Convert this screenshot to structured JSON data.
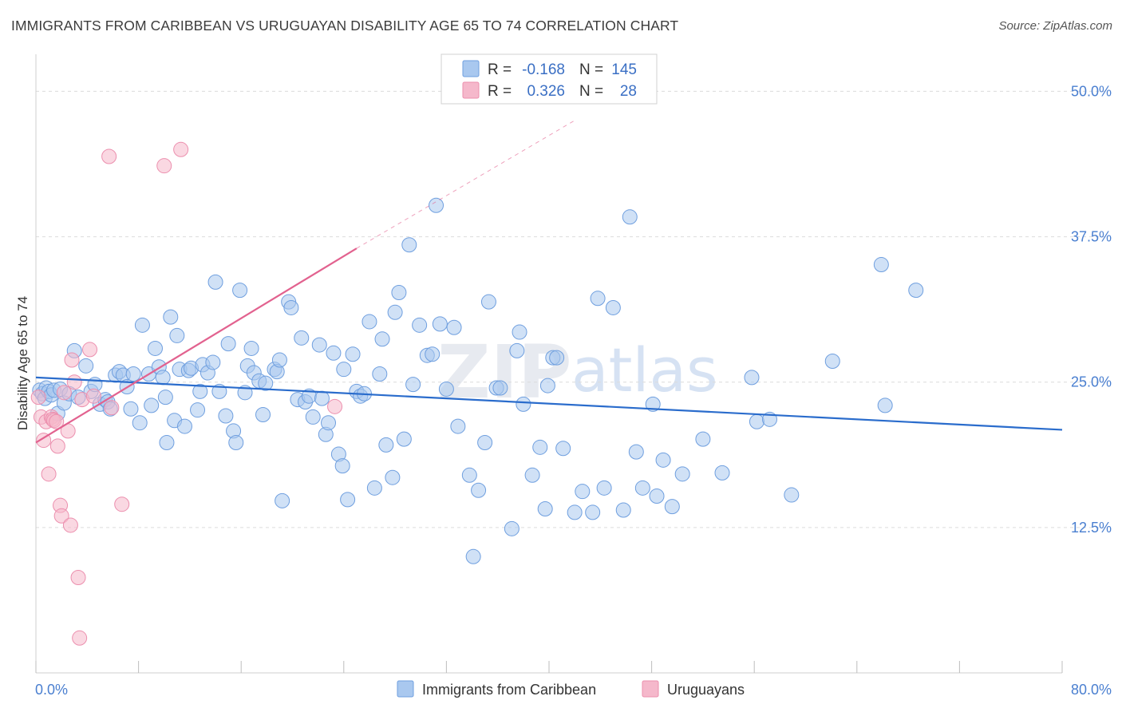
{
  "header": {
    "title": "IMMIGRANTS FROM CARIBBEAN VS URUGUAYAN DISABILITY AGE 65 TO 74 CORRELATION CHART",
    "source": "Source: ZipAtlas.com"
  },
  "legend": {
    "r_label": "R =",
    "n_label": "N =",
    "rows": [
      {
        "r": "-0.168",
        "n": "145"
      },
      {
        "r": "0.326",
        "n": "28"
      }
    ]
  },
  "watermark": {
    "zip": "ZIP",
    "atlas": "atlas"
  },
  "colors": {
    "blue_fill": "#a9c8ef",
    "blue_stroke": "#6f9fdf",
    "blue_line": "#2a6ccc",
    "pink_fill": "#f5b8cb",
    "pink_stroke": "#ec8fae",
    "pink_line": "#e2628f",
    "grid": "#dcdcdc",
    "tick_label": "#4a7fd0"
  },
  "chart_data": {
    "type": "scatter",
    "title": "IMMIGRANTS FROM CARIBBEAN VS URUGUAYAN DISABILITY AGE 65 TO 74 CORRELATION CHART",
    "xlabel": "",
    "ylabel": "Disability Age 65 to 74",
    "xlim": [
      0,
      80
    ],
    "ylim": [
      0,
      52.5
    ],
    "x_tick_labels": [
      "0.0%",
      "80.0%"
    ],
    "y_ticks": [
      12.5,
      25.0,
      37.5,
      50.0
    ],
    "y_tick_labels": [
      "12.5%",
      "25.0%",
      "37.5%",
      "50.0%"
    ],
    "legend_position": "top-center",
    "series": [
      {
        "name": "Immigrants from Caribbean",
        "color": "#a9c8ef",
        "r": -0.168,
        "n": 145,
        "trend": {
          "x": [
            0,
            80
          ],
          "y": [
            25.4,
            20.9
          ],
          "style": "solid"
        },
        "points": [
          [
            0.3,
            24.3
          ],
          [
            0.5,
            24.0
          ],
          [
            0.7,
            23.6
          ],
          [
            0.8,
            24.5
          ],
          [
            1.0,
            24.2
          ],
          [
            1.2,
            23.9
          ],
          [
            1.4,
            24.3
          ],
          [
            1.7,
            22.3
          ],
          [
            1.9,
            24.4
          ],
          [
            2.2,
            23.2
          ],
          [
            2.6,
            24.0
          ],
          [
            3.0,
            27.7
          ],
          [
            3.3,
            23.7
          ],
          [
            3.9,
            26.4
          ],
          [
            4.3,
            24.2
          ],
          [
            4.6,
            24.8
          ],
          [
            5.0,
            23.1
          ],
          [
            5.4,
            23.5
          ],
          [
            5.6,
            23.3
          ],
          [
            5.8,
            22.7
          ],
          [
            6.2,
            25.6
          ],
          [
            6.5,
            25.9
          ],
          [
            6.8,
            25.6
          ],
          [
            7.1,
            24.6
          ],
          [
            7.4,
            22.7
          ],
          [
            7.6,
            25.7
          ],
          [
            8.1,
            21.5
          ],
          [
            8.3,
            29.9
          ],
          [
            8.8,
            25.7
          ],
          [
            9.0,
            23.0
          ],
          [
            9.3,
            27.9
          ],
          [
            9.6,
            26.3
          ],
          [
            9.9,
            25.4
          ],
          [
            10.1,
            23.7
          ],
          [
            10.2,
            19.8
          ],
          [
            10.5,
            30.6
          ],
          [
            10.8,
            21.7
          ],
          [
            11.0,
            29.0
          ],
          [
            11.2,
            26.1
          ],
          [
            11.6,
            21.2
          ],
          [
            11.9,
            26.0
          ],
          [
            12.1,
            26.2
          ],
          [
            12.6,
            22.6
          ],
          [
            12.8,
            24.2
          ],
          [
            13.0,
            26.5
          ],
          [
            13.4,
            25.8
          ],
          [
            13.8,
            26.7
          ],
          [
            14.0,
            33.6
          ],
          [
            14.3,
            24.2
          ],
          [
            14.8,
            22.1
          ],
          [
            15.0,
            28.3
          ],
          [
            15.4,
            20.8
          ],
          [
            15.6,
            19.8
          ],
          [
            15.9,
            32.9
          ],
          [
            16.3,
            24.1
          ],
          [
            16.5,
            26.4
          ],
          [
            16.8,
            27.9
          ],
          [
            17.0,
            25.8
          ],
          [
            17.4,
            25.1
          ],
          [
            17.9,
            24.9
          ],
          [
            17.7,
            22.2
          ],
          [
            18.6,
            26.1
          ],
          [
            18.8,
            25.9
          ],
          [
            19.0,
            26.9
          ],
          [
            19.2,
            14.8
          ],
          [
            19.7,
            31.9
          ],
          [
            19.9,
            31.4
          ],
          [
            20.4,
            23.5
          ],
          [
            20.7,
            28.8
          ],
          [
            21.0,
            23.3
          ],
          [
            21.3,
            23.8
          ],
          [
            21.6,
            22.0
          ],
          [
            22.1,
            28.2
          ],
          [
            22.3,
            23.6
          ],
          [
            22.6,
            20.5
          ],
          [
            22.8,
            21.5
          ],
          [
            23.2,
            27.5
          ],
          [
            23.6,
            18.8
          ],
          [
            23.9,
            17.8
          ],
          [
            24.0,
            26.1
          ],
          [
            24.3,
            14.9
          ],
          [
            24.7,
            27.4
          ],
          [
            25.0,
            24.2
          ],
          [
            25.3,
            23.8
          ],
          [
            25.6,
            24.0
          ],
          [
            26.0,
            30.2
          ],
          [
            26.4,
            15.9
          ],
          [
            26.8,
            25.7
          ],
          [
            27.0,
            28.7
          ],
          [
            27.3,
            19.6
          ],
          [
            27.8,
            16.8
          ],
          [
            28.0,
            31.0
          ],
          [
            28.3,
            32.7
          ],
          [
            28.7,
            20.1
          ],
          [
            29.1,
            36.8
          ],
          [
            29.4,
            24.8
          ],
          [
            29.9,
            29.9
          ],
          [
            30.5,
            27.3
          ],
          [
            30.9,
            27.4
          ],
          [
            31.2,
            40.2
          ],
          [
            31.5,
            30.0
          ],
          [
            32.0,
            24.4
          ],
          [
            32.6,
            29.7
          ],
          [
            32.9,
            21.2
          ],
          [
            33.8,
            17.0
          ],
          [
            34.1,
            10.0
          ],
          [
            34.5,
            15.7
          ],
          [
            35.0,
            19.8
          ],
          [
            35.3,
            31.9
          ],
          [
            35.9,
            24.5
          ],
          [
            36.2,
            24.5
          ],
          [
            37.1,
            12.4
          ],
          [
            37.5,
            27.7
          ],
          [
            37.7,
            29.3
          ],
          [
            38.0,
            23.1
          ],
          [
            38.7,
            17.0
          ],
          [
            39.3,
            19.4
          ],
          [
            39.7,
            14.1
          ],
          [
            39.9,
            24.7
          ],
          [
            40.3,
            27.1
          ],
          [
            40.6,
            27.1
          ],
          [
            41.1,
            19.3
          ],
          [
            42.0,
            13.8
          ],
          [
            42.6,
            15.6
          ],
          [
            43.4,
            13.8
          ],
          [
            43.8,
            32.2
          ],
          [
            44.3,
            15.9
          ],
          [
            45.0,
            31.4
          ],
          [
            45.8,
            14.0
          ],
          [
            46.3,
            39.2
          ],
          [
            46.8,
            19.0
          ],
          [
            47.3,
            15.9
          ],
          [
            48.1,
            23.1
          ],
          [
            48.4,
            15.2
          ],
          [
            48.9,
            18.3
          ],
          [
            49.6,
            14.3
          ],
          [
            50.4,
            17.1
          ],
          [
            52.0,
            20.1
          ],
          [
            53.5,
            17.2
          ],
          [
            55.8,
            25.4
          ],
          [
            56.2,
            21.6
          ],
          [
            57.2,
            21.8
          ],
          [
            58.9,
            15.3
          ],
          [
            62.1,
            26.8
          ],
          [
            65.9,
            35.1
          ],
          [
            66.2,
            23.0
          ],
          [
            68.6,
            32.9
          ]
        ]
      },
      {
        "name": "Uruguayans",
        "color": "#f5b8cb",
        "r": 0.326,
        "n": 28,
        "trend": {
          "x": [
            0,
            25
          ],
          "y": [
            19.8,
            36.5
          ],
          "style": "solid",
          "extended_to": [
            42,
            47.5
          ],
          "extended_style": "dashed"
        },
        "points": [
          [
            0.2,
            23.7
          ],
          [
            0.4,
            22.0
          ],
          [
            0.6,
            20.0
          ],
          [
            0.8,
            21.6
          ],
          [
            1.0,
            17.1
          ],
          [
            1.2,
            22.0
          ],
          [
            1.3,
            21.8
          ],
          [
            1.4,
            21.7
          ],
          [
            1.6,
            21.6
          ],
          [
            1.7,
            19.5
          ],
          [
            1.9,
            14.4
          ],
          [
            2.0,
            13.5
          ],
          [
            2.2,
            24.1
          ],
          [
            2.5,
            20.8
          ],
          [
            2.7,
            12.7
          ],
          [
            2.8,
            26.9
          ],
          [
            3.0,
            25.0
          ],
          [
            3.3,
            8.2
          ],
          [
            3.4,
            3.0
          ],
          [
            3.6,
            23.5
          ],
          [
            4.2,
            27.8
          ],
          [
            4.5,
            23.8
          ],
          [
            5.7,
            44.4
          ],
          [
            5.9,
            22.8
          ],
          [
            6.7,
            14.5
          ],
          [
            10.0,
            43.6
          ],
          [
            11.3,
            45.0
          ],
          [
            23.3,
            22.9
          ]
        ]
      }
    ]
  },
  "bottom_legend": {
    "items": [
      {
        "label": "Immigrants from Caribbean"
      },
      {
        "label": "Uruguayans"
      }
    ]
  }
}
